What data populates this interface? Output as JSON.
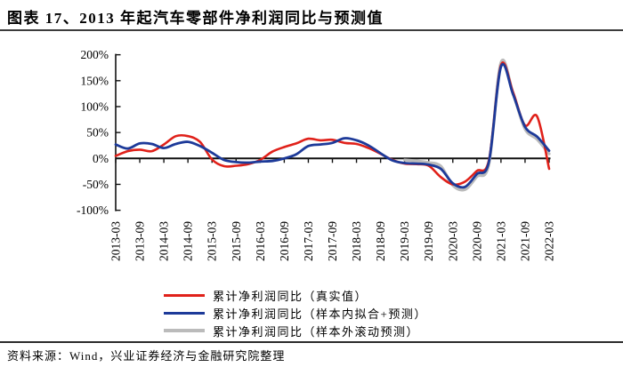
{
  "header": {
    "title": "图表 17、2013 年起汽车零部件净利润同比与预测值"
  },
  "footer": {
    "source": "资料来源：Wind，兴业证券经济与金融研究院整理"
  },
  "chart_data": {
    "type": "line",
    "title": "2013 年起汽车零部件净利润同比与预测值",
    "xlabel": "",
    "ylabel": "",
    "grid": false,
    "legend_position": "bottom",
    "axis_color": "#111111",
    "ylim": [
      -100,
      200
    ],
    "y_tick_values": [
      200,
      150,
      100,
      50,
      0,
      -50,
      -100
    ],
    "y_tick_labels": [
      "200%",
      "150%",
      "100%",
      "50%",
      "0%",
      "-50%",
      "-100%"
    ],
    "x": [
      "2013-03",
      "2013-06",
      "2013-09",
      "2013-12",
      "2014-03",
      "2014-06",
      "2014-09",
      "2014-12",
      "2015-03",
      "2015-06",
      "2015-09",
      "2015-12",
      "2016-03",
      "2016-06",
      "2016-09",
      "2016-12",
      "2017-03",
      "2017-06",
      "2017-09",
      "2017-12",
      "2018-03",
      "2018-06",
      "2018-09",
      "2018-12",
      "2019-03",
      "2019-06",
      "2019-09",
      "2019-12",
      "2020-03",
      "2020-06",
      "2020-09",
      "2020-12",
      "2021-03",
      "2021-06",
      "2021-09",
      "2021-12",
      "2022-03"
    ],
    "x_axis_ticks": [
      "2013-03",
      "2013-09",
      "2014-03",
      "2014-09",
      "2015-03",
      "2015-09",
      "2016-03",
      "2016-09",
      "2017-03",
      "2017-09",
      "2018-03",
      "2018-09",
      "2019-03",
      "2019-09",
      "2020-03",
      "2020-09",
      "2021-03",
      "2021-09",
      "2022-03"
    ],
    "series": [
      {
        "id": "actual",
        "name": "累计净利润同比（真实值）",
        "color": "#e0211a",
        "values": [
          5,
          14,
          17,
          14,
          27,
          43,
          43,
          32,
          -2,
          -15,
          -14,
          -11,
          -3,
          13,
          22,
          29,
          38,
          35,
          36,
          30,
          28,
          20,
          9,
          -3,
          -10,
          -11,
          -14,
          -36,
          -50,
          -45,
          -24,
          -3,
          180,
          128,
          64,
          81,
          -20
        ]
      },
      {
        "id": "in-sample-fit-forecast",
        "name": "累计净利润同比（样本内拟合+预测）",
        "color": "#1d3a99",
        "values": [
          27,
          19,
          29,
          28,
          20,
          28,
          32,
          24,
          11,
          -3,
          -7,
          -8,
          -6,
          -5,
          0,
          8,
          24,
          27,
          30,
          39,
          35,
          25,
          10,
          -4,
          -9,
          -10,
          -12,
          -20,
          -48,
          -55,
          -30,
          -6,
          177,
          124,
          61,
          42,
          15
        ]
      },
      {
        "id": "out-of-sample-rolling-forecast",
        "name": "累计净利润同比（样本外滚动预测）",
        "color": "#bbbbbb",
        "values": [
          null,
          null,
          null,
          null,
          null,
          null,
          null,
          null,
          null,
          null,
          null,
          null,
          null,
          null,
          null,
          null,
          null,
          null,
          null,
          null,
          null,
          null,
          null,
          null,
          -3,
          -5,
          -8,
          -15,
          -52,
          -60,
          -35,
          -10,
          185,
          126,
          57,
          37,
          9
        ]
      }
    ]
  }
}
